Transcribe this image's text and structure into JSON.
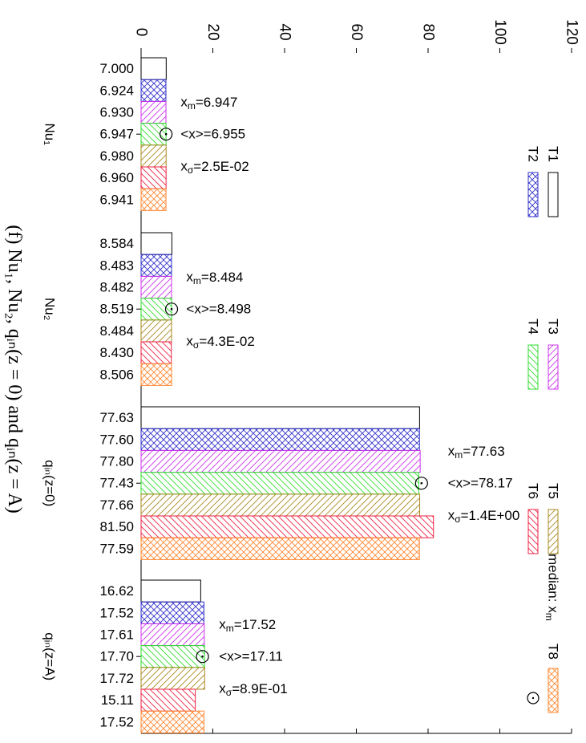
{
  "caption": "(f) Nu₁, Nu₂, qᵢₙ(z = 0) and qᵢₙ(z = A)",
  "chart_data": {
    "type": "bar",
    "orientation": "horizontal",
    "value_axis": {
      "ticks": [
        "0",
        "20",
        "40",
        "60",
        "80",
        "100",
        "120"
      ],
      "range": [
        0,
        120
      ]
    },
    "categories": [
      "Nu₁",
      "Nu₂",
      "qᵢₙ(z=0)",
      "qᵢₙ(z=A)"
    ],
    "series": [
      {
        "name": "T1",
        "pattern": "empty",
        "color": "#000000",
        "values": [
          7.0,
          8.584,
          77.63,
          16.62
        ],
        "labels": [
          "7.000",
          "8.584",
          "77.63",
          "16.62"
        ]
      },
      {
        "name": "T2",
        "pattern": "crosshatch",
        "color": "#3333cc",
        "values": [
          6.924,
          8.483,
          77.6,
          17.52
        ],
        "labels": [
          "6.924",
          "8.483",
          "77.60",
          "17.52"
        ]
      },
      {
        "name": "T3",
        "pattern": "diag",
        "color": "#cc33ee",
        "values": [
          6.93,
          8.482,
          77.8,
          17.61
        ],
        "labels": [
          "6.930",
          "8.482",
          "77.80",
          "17.61"
        ]
      },
      {
        "name": "T4",
        "pattern": "diag",
        "color": "#33dd33",
        "values": [
          6.947,
          8.519,
          77.43,
          17.7
        ],
        "labels": [
          "6.947",
          "8.519",
          "77.43",
          "17.70"
        ]
      },
      {
        "name": "T5",
        "pattern": "diag",
        "color": "#aa8822",
        "values": [
          6.98,
          8.484,
          77.66,
          17.72
        ],
        "labels": [
          "6.980",
          "8.484",
          "77.66",
          "17.72"
        ]
      },
      {
        "name": "T6",
        "pattern": "diag",
        "color": "#ee2244",
        "values": [
          6.96,
          8.43,
          81.5,
          15.11
        ],
        "labels": [
          "6.960",
          "8.430",
          "81.50",
          "15.11"
        ]
      },
      {
        "name": "T8",
        "pattern": "crosshatch",
        "color": "#ff8833",
        "values": [
          6.941,
          8.506,
          77.59,
          17.52
        ],
        "labels": [
          "6.941",
          "8.506",
          "77.59",
          "17.52"
        ]
      }
    ],
    "stats": [
      {
        "median": 6.947,
        "mean": 6.955,
        "sigma": "2.5E-02",
        "median_label": "=6.947",
        "mean_label": "<x>=6.955",
        "sigma_label": "=2.5E-02"
      },
      {
        "median": 8.484,
        "mean": 8.498,
        "sigma": "4.3E-02",
        "median_label": "=8.484",
        "mean_label": "<x>=8.498",
        "sigma_label": "=4.3E-02"
      },
      {
        "median": 77.63,
        "mean": 78.17,
        "sigma": "1.4E+00",
        "median_label": "=77.63",
        "mean_label": "<x>=78.17",
        "sigma_label": "=1.4E+00"
      },
      {
        "median": 17.52,
        "mean": 17.11,
        "sigma": "8.9E-01",
        "median_label": "=17.52",
        "mean_label": "<x>=17.11",
        "sigma_label": "=8.9E-01"
      }
    ],
    "legend": {
      "placement": "right",
      "median_label": "median: x"
    }
  }
}
